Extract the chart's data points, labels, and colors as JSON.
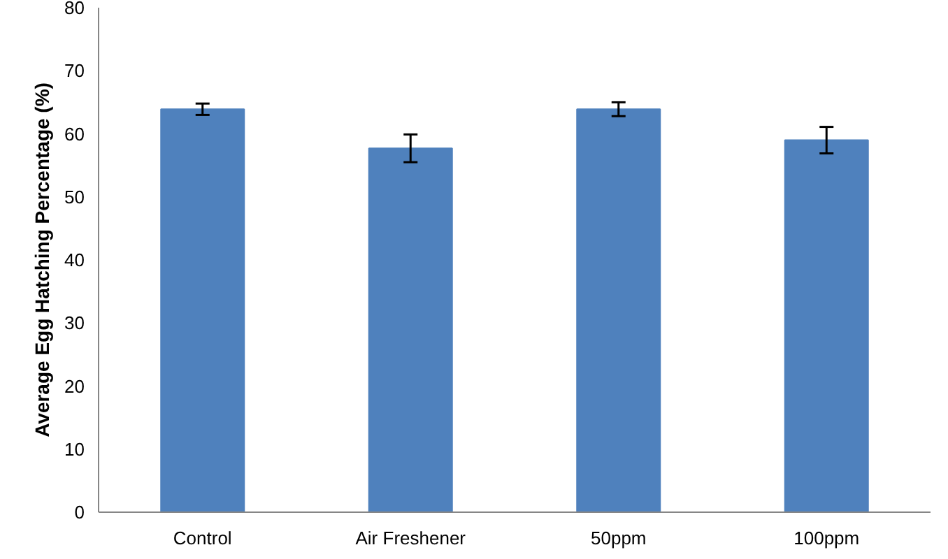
{
  "chart_data": {
    "type": "bar",
    "ylabel": "Average Egg Hatching Percentage (%)",
    "categories": [
      "Control",
      "Air Freshener",
      "50ppm",
      "100ppm"
    ],
    "values": [
      63.9,
      57.7,
      63.9,
      59.0
    ],
    "errors": [
      0.9,
      2.2,
      1.1,
      2.1
    ],
    "color": "#4f81bd",
    "ylim": [
      0,
      80
    ],
    "yticks": [
      0,
      10,
      20,
      30,
      40,
      50,
      60,
      70,
      80
    ],
    "grid": false
  }
}
